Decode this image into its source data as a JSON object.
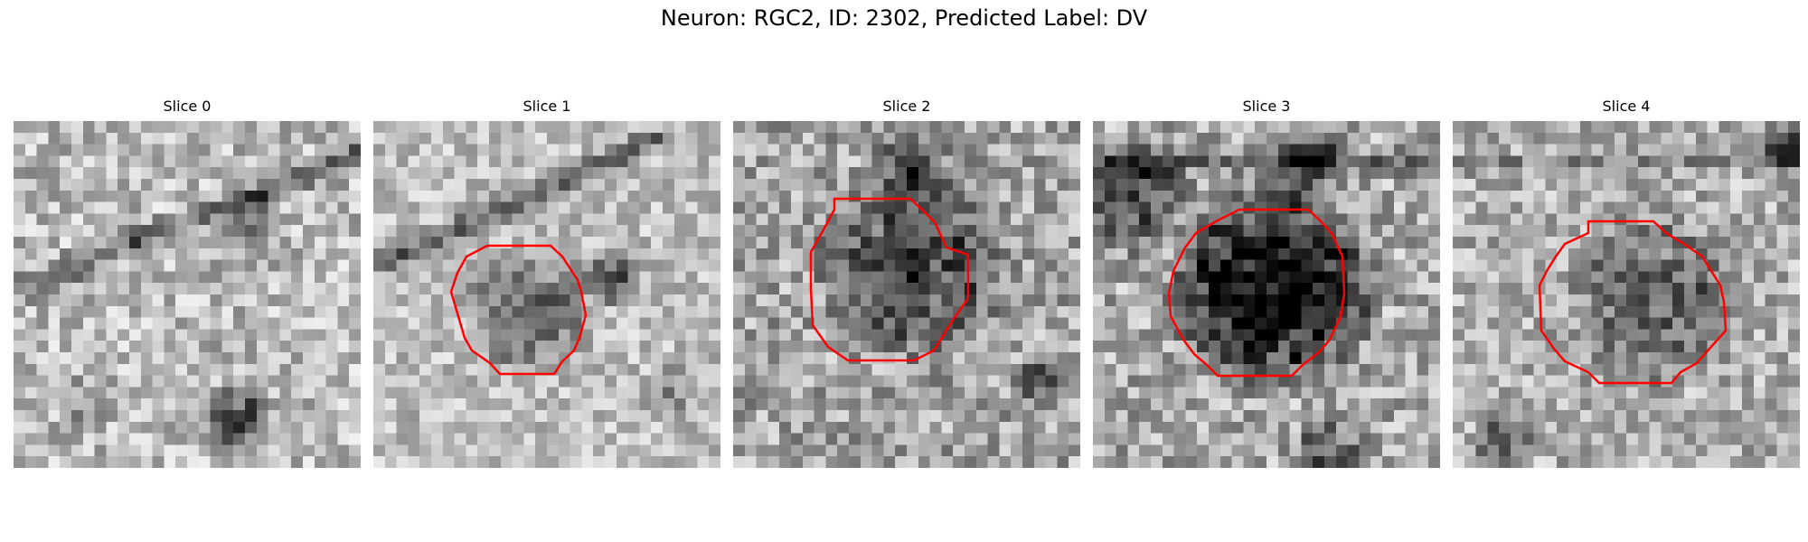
{
  "figure": {
    "title": "Neuron: RGC2, ID: 2302, Predicted Label: DV"
  },
  "panels": [
    {
      "title": "Slice 0",
      "has_contour": false,
      "contour_color": "#ff0000"
    },
    {
      "title": "Slice 1",
      "has_contour": true,
      "contour_color": "#ff0000"
    },
    {
      "title": "Slice 2",
      "has_contour": true,
      "contour_color": "#ff0000"
    },
    {
      "title": "Slice 3",
      "has_contour": true,
      "contour_color": "#ff0000"
    },
    {
      "title": "Slice 4",
      "has_contour": true,
      "contour_color": "#ff0000"
    }
  ],
  "colormap": "gray"
}
